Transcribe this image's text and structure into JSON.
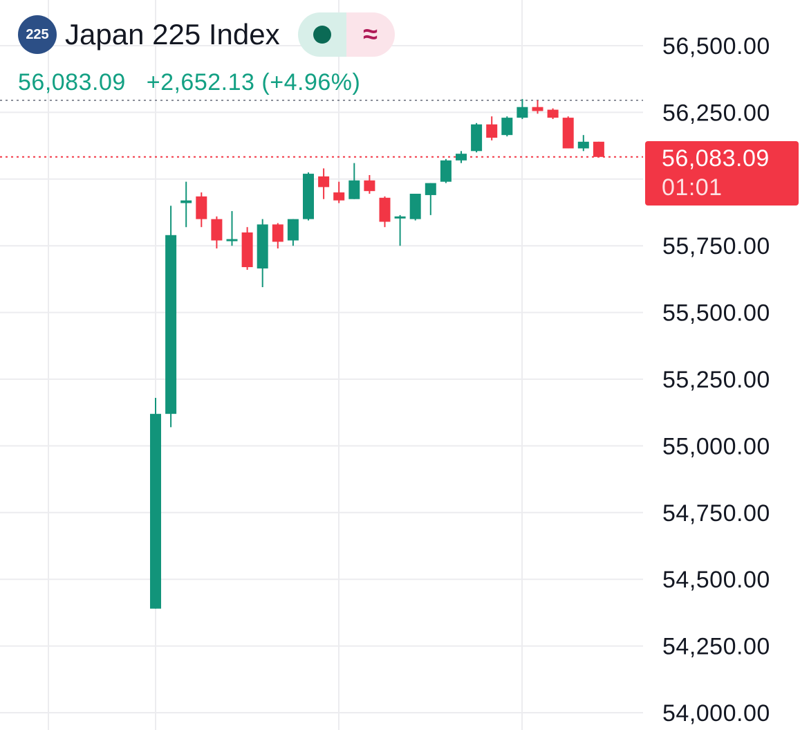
{
  "header": {
    "logo_text": "225",
    "title": "Japan 225 Index",
    "status_icon": "market-open-dot-icon",
    "delay_icon": "approx-icon",
    "delay_glyph": "≈"
  },
  "quote": {
    "last": "56,083.09",
    "change": "+2,652.13",
    "change_pct": "(+4.96%)"
  },
  "price_label": {
    "value": "56,083.09",
    "countdown": "01:01"
  },
  "colors": {
    "up": "#12947a",
    "down": "#f23645",
    "quote_text": "#13a083",
    "grid": "#ececef",
    "logo_bg": "#2c4f86"
  },
  "chart_data": {
    "type": "candlestick",
    "y_axis": {
      "ticks": [
        "56,500.00",
        "56,250.00",
        "55,750.00",
        "55,500.00",
        "55,250.00",
        "55,000.00",
        "54,750.00",
        "54,500.00",
        "54,250.00",
        "54,000.00"
      ],
      "tick_values": [
        56500,
        56250,
        55750,
        55500,
        55250,
        55000,
        54750,
        54500,
        54250,
        54000
      ],
      "range": [
        54000,
        56500
      ]
    },
    "last_price": 56083.09,
    "high_line": 56295,
    "grid": true,
    "candles": [
      {
        "o": 54390,
        "h": 55180,
        "l": 54390,
        "c": 55120
      },
      {
        "o": 55120,
        "h": 55900,
        "l": 55070,
        "c": 55790
      },
      {
        "o": 55910,
        "h": 55990,
        "l": 55820,
        "c": 55920
      },
      {
        "o": 55935,
        "h": 55950,
        "l": 55820,
        "c": 55850
      },
      {
        "o": 55850,
        "h": 55860,
        "l": 55740,
        "c": 55770
      },
      {
        "o": 55775,
        "h": 55880,
        "l": 55750,
        "c": 55775
      },
      {
        "o": 55800,
        "h": 55820,
        "l": 55660,
        "c": 55670
      },
      {
        "o": 55665,
        "h": 55850,
        "l": 55595,
        "c": 55830
      },
      {
        "o": 55830,
        "h": 55835,
        "l": 55740,
        "c": 55765
      },
      {
        "o": 55770,
        "h": 55850,
        "l": 55750,
        "c": 55850
      },
      {
        "o": 55850,
        "h": 56025,
        "l": 55845,
        "c": 56020
      },
      {
        "o": 56010,
        "h": 56040,
        "l": 55925,
        "c": 55970
      },
      {
        "o": 55950,
        "h": 55990,
        "l": 55910,
        "c": 55920
      },
      {
        "o": 55925,
        "h": 56060,
        "l": 55925,
        "c": 55995
      },
      {
        "o": 55995,
        "h": 56015,
        "l": 55945,
        "c": 55955
      },
      {
        "o": 55930,
        "h": 55935,
        "l": 55820,
        "c": 55840
      },
      {
        "o": 55860,
        "h": 55865,
        "l": 55750,
        "c": 55860
      },
      {
        "o": 55850,
        "h": 55945,
        "l": 55845,
        "c": 55945
      },
      {
        "o": 55940,
        "h": 55985,
        "l": 55865,
        "c": 55985
      },
      {
        "o": 55990,
        "h": 56075,
        "l": 55985,
        "c": 56070
      },
      {
        "o": 56070,
        "h": 56105,
        "l": 56060,
        "c": 56095
      },
      {
        "o": 56105,
        "h": 56210,
        "l": 56100,
        "c": 56205
      },
      {
        "o": 56205,
        "h": 56235,
        "l": 56145,
        "c": 56155
      },
      {
        "o": 56165,
        "h": 56235,
        "l": 56160,
        "c": 56230
      },
      {
        "o": 56230,
        "h": 56300,
        "l": 56225,
        "c": 56270
      },
      {
        "o": 56270,
        "h": 56295,
        "l": 56245,
        "c": 56255
      },
      {
        "o": 56260,
        "h": 56265,
        "l": 56225,
        "c": 56230
      },
      {
        "o": 56230,
        "h": 56235,
        "l": 56115,
        "c": 56115
      },
      {
        "o": 56115,
        "h": 56165,
        "l": 56105,
        "c": 56140
      },
      {
        "o": 56140,
        "h": 56140,
        "l": 56083,
        "c": 56083
      }
    ]
  }
}
